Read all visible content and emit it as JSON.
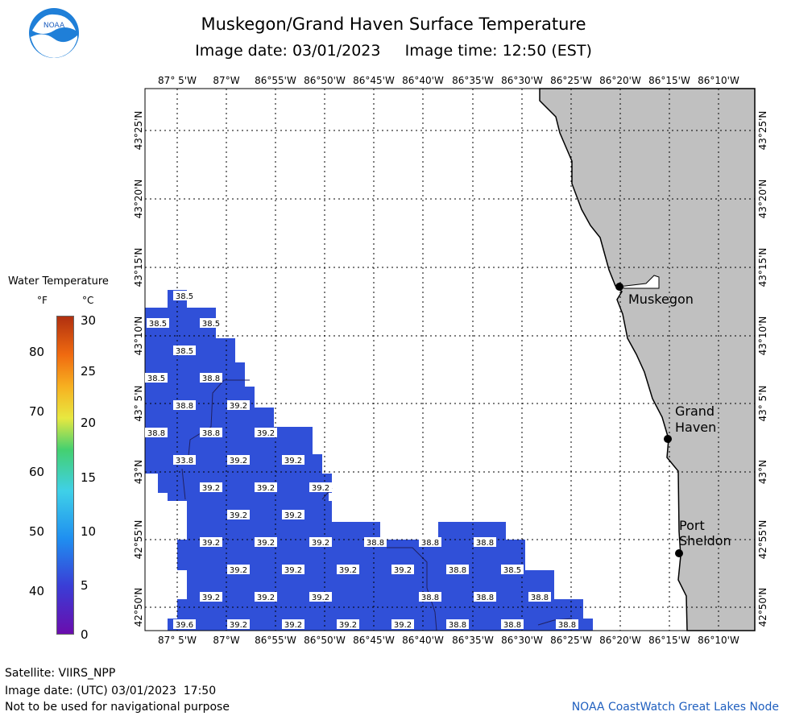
{
  "header": {
    "title": "Muskegon/Grand Haven Surface Temperature",
    "image_date": "Image date: 03/01/2023",
    "image_time": "Image time: 12:50 (EST)"
  },
  "logo": {
    "text": "NOAA"
  },
  "legend": {
    "title": "Water Temperature",
    "unit_f": "°F",
    "unit_c": "°C",
    "f_ticks": [
      "80",
      "70",
      "60",
      "50",
      "40"
    ],
    "c_ticks": [
      "30",
      "25",
      "20",
      "15",
      "10",
      "5",
      "0"
    ],
    "colors": [
      "#6a0dad",
      "#3a3dd6",
      "#1f8ff0",
      "#3fd0e8",
      "#44d070",
      "#e8e840",
      "#f7b020",
      "#f06a10",
      "#b03010"
    ]
  },
  "axes": {
    "top_lon": [
      "87° 5'W",
      "87°W",
      "86°55'W",
      "86°50'W",
      "86°45'W",
      "86°40'W",
      "86°35'W",
      "86°30'W",
      "86°25'W",
      "86°20'W",
      "86°15'W",
      "86°10'W"
    ],
    "bottom_lon": [
      "87° 5'W",
      "87°W",
      "86°55'W",
      "86°50'W",
      "86°45'W",
      "86°40'W",
      "86°35'W",
      "86°30'W",
      "86°25'W",
      "86°20'W",
      "86°15'W",
      "86°10'W"
    ],
    "left_lat": [
      "43°25'N",
      "43°20'N",
      "43°15'N",
      "43°10'N",
      "43° 5'N",
      "43°N",
      "42°55'N",
      "42°50'N"
    ],
    "right_lat": [
      "43°25'N",
      "43°20'N",
      "43°15'N",
      "43°10'N",
      "43° 5'N",
      "43°N",
      "42°55'N",
      "42°50'N"
    ]
  },
  "map": {
    "water_color": "#3050d8",
    "land_color": "#c0c0c0",
    "cities": [
      {
        "name": "Muskegon"
      },
      {
        "name": "Grand Haven",
        "line1": "Grand",
        "line2": "Haven"
      },
      {
        "name": "Port Sheldon",
        "line1": "Port",
        "line2": "Sheldon"
      }
    ],
    "temperature_labels": [
      {
        "v": "38.5"
      },
      {
        "v": "38.5"
      },
      {
        "v": "38.5"
      },
      {
        "v": "38.5"
      },
      {
        "v": "38.5"
      },
      {
        "v": "38.8"
      },
      {
        "v": "38.8"
      },
      {
        "v": "39.2"
      },
      {
        "v": "38.8"
      },
      {
        "v": "38.8"
      },
      {
        "v": "39.2"
      },
      {
        "v": "33.8"
      },
      {
        "v": "39.2"
      },
      {
        "v": "39.2"
      },
      {
        "v": "39.2"
      },
      {
        "v": "39.2"
      },
      {
        "v": "39.2"
      },
      {
        "v": "39.2"
      },
      {
        "v": "39.2"
      },
      {
        "v": "39.2"
      },
      {
        "v": "39.2"
      },
      {
        "v": "38.8"
      },
      {
        "v": "38.8"
      },
      {
        "v": "38.8"
      },
      {
        "v": "39.2"
      },
      {
        "v": "39.2"
      },
      {
        "v": "39.2"
      },
      {
        "v": "39.2"
      },
      {
        "v": "38.8"
      },
      {
        "v": "38.5"
      },
      {
        "v": "39.2"
      },
      {
        "v": "39.2"
      },
      {
        "v": "39.2"
      },
      {
        "v": "39.2"
      },
      {
        "v": "38.8"
      },
      {
        "v": "38.8"
      },
      {
        "v": "38.8"
      },
      {
        "v": "39.6"
      },
      {
        "v": "39.2"
      },
      {
        "v": "39.2"
      },
      {
        "v": "39.2"
      },
      {
        "v": "39.2"
      },
      {
        "v": "38.8"
      },
      {
        "v": "38.8"
      },
      {
        "v": "38.8"
      }
    ]
  },
  "footer": {
    "satellite": "Satellite: VIIRS_NPP",
    "utc_date": "Image date: (UTC) 03/01/2023  17:50",
    "disclaimer": "Not to be used for navigational purpose",
    "credit": "NOAA CoastWatch Great Lakes Node"
  }
}
